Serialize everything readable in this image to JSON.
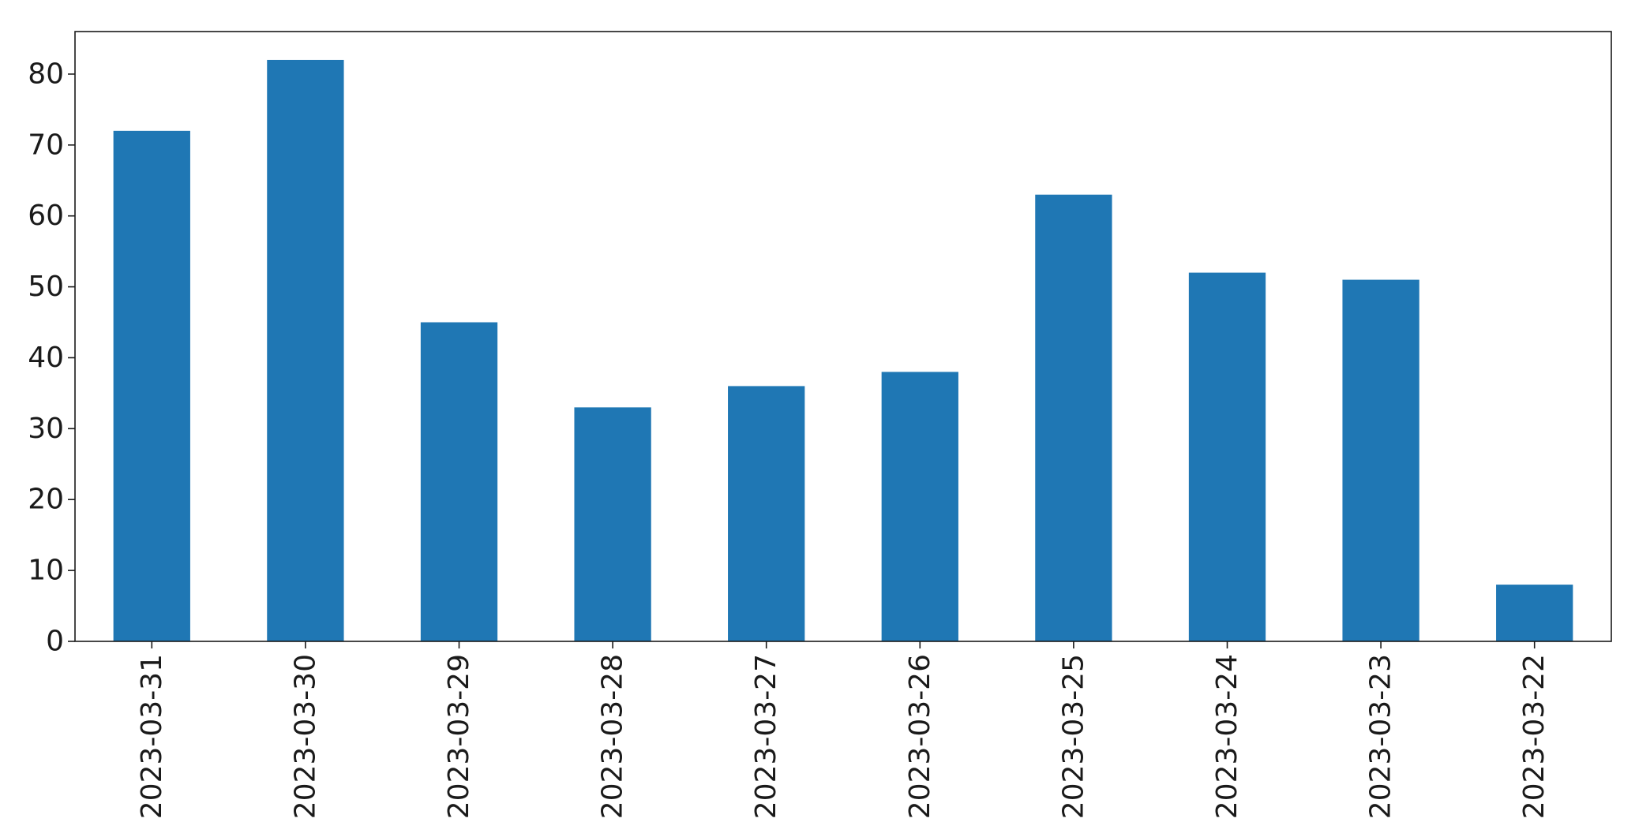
{
  "chart_data": {
    "type": "bar",
    "title": "",
    "xlabel": "",
    "ylabel": "",
    "categories": [
      "2023-03-31",
      "2023-03-30",
      "2023-03-29",
      "2023-03-28",
      "2023-03-27",
      "2023-03-26",
      "2023-03-25",
      "2023-03-24",
      "2023-03-23",
      "2023-03-22"
    ],
    "values": [
      72,
      82,
      45,
      33,
      36,
      38,
      63,
      52,
      51,
      8
    ],
    "ylim": [
      0,
      86
    ],
    "yticks": [
      0,
      10,
      20,
      30,
      40,
      50,
      60,
      70,
      80
    ],
    "grid": false,
    "legend": "none",
    "bar_color": "#1f77b4"
  }
}
